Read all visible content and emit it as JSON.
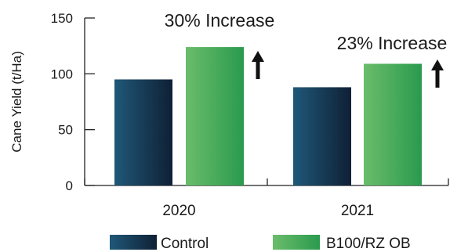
{
  "chart_data": {
    "type": "bar",
    "title": "",
    "xlabel": "",
    "ylabel": "Cane Yield (t/Ha)",
    "ylim": [
      0,
      150
    ],
    "yticks": [
      0,
      50,
      100,
      150
    ],
    "categories": [
      "2020",
      "2021"
    ],
    "series": [
      {
        "name": "Control",
        "values": [
          95,
          88
        ],
        "gradient": [
          "#1f5878",
          "#0f2035"
        ]
      },
      {
        "name": "B100/RZ OB",
        "values": [
          124,
          109
        ],
        "gradient": [
          "#6abd6a",
          "#2a9a4e"
        ]
      }
    ],
    "annotations": [
      {
        "category": "2020",
        "text": "30% Increase",
        "arrow": "up"
      },
      {
        "category": "2021",
        "text": "23% Increase",
        "arrow": "up"
      }
    ],
    "legend_position": "bottom",
    "grid": false
  }
}
